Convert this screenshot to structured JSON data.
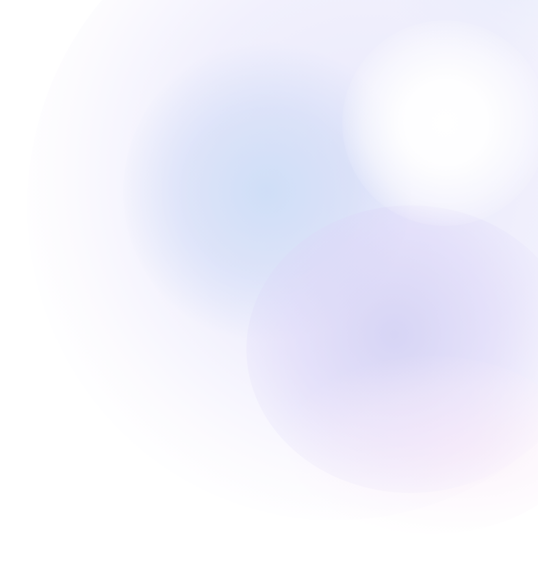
{
  "background": {
    "base_color": "#ffffff",
    "gradient_colors": {
      "blue": "#cadcf6",
      "violet": "#d4d2f4",
      "lavender": "#e0def8",
      "pink": "#f8e8f8",
      "highlight": "#ffffff"
    },
    "description_visible_text": ""
  }
}
